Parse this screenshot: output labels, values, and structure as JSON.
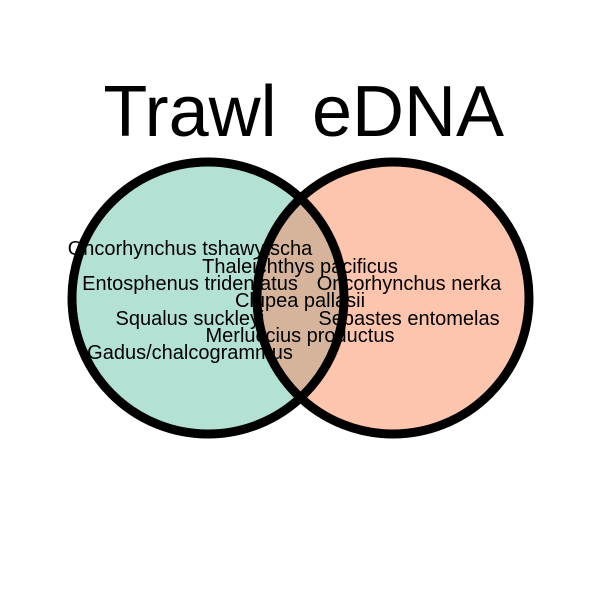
{
  "venn": {
    "sets": [
      {
        "id": "trawl",
        "label": "Trawl",
        "fill": "#b3e2d5"
      },
      {
        "id": "edna",
        "label": "eDNA",
        "fill": "#fdc5ae"
      }
    ],
    "intersection_fill": "#d5b49b",
    "outline_color": "#000000",
    "trawl_only": [
      "Oncorhynchus tshawytscha",
      "Entosphenus tridentatus",
      "Squalus suckleyi",
      "Gadus/chalcogrammus"
    ],
    "both": [
      "Thaleichthys pacificus",
      "Clupea pallasii",
      "Merluccius productus"
    ],
    "edna_only": [
      "Oncorhynchus nerka",
      "Sebastes entomelas"
    ]
  }
}
